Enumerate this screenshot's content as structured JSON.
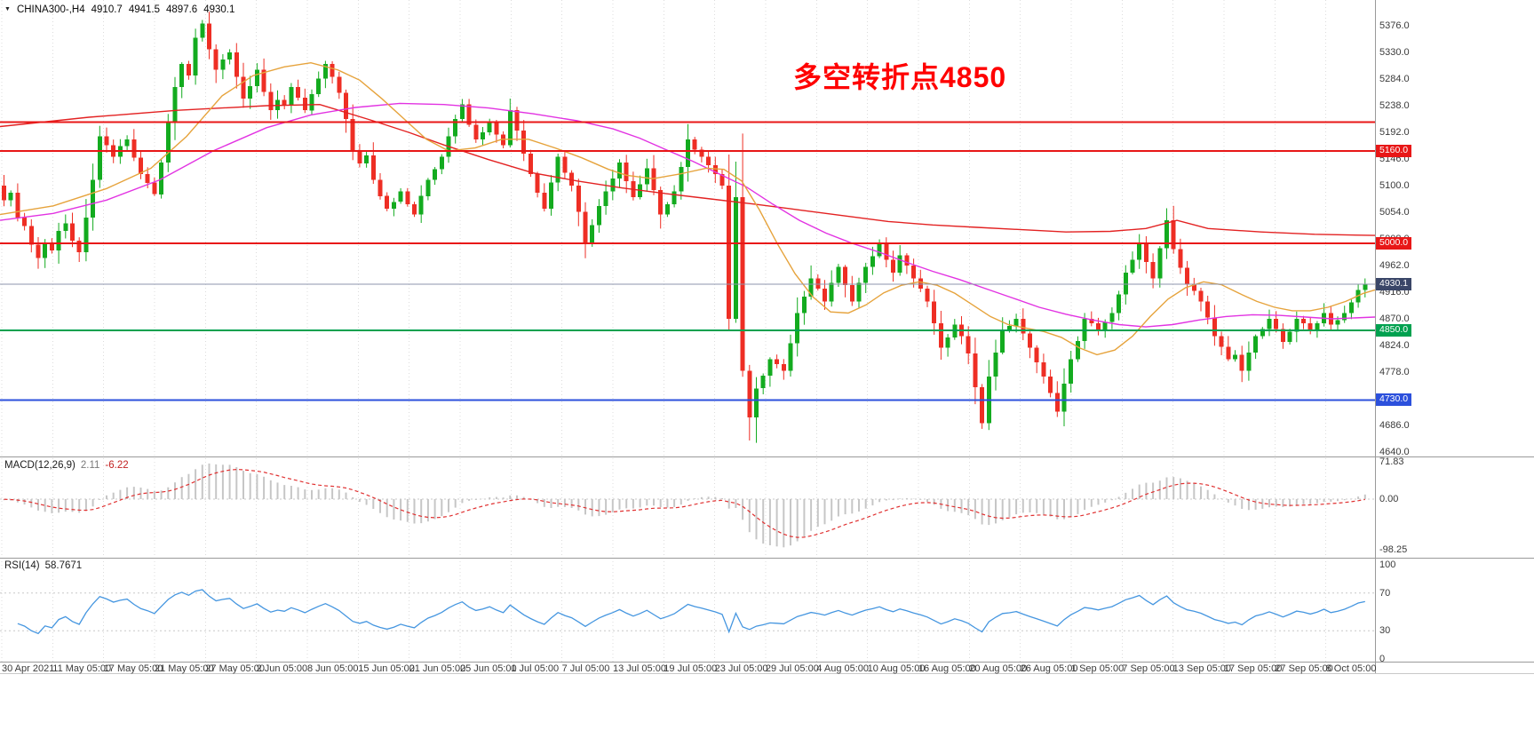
{
  "header": {
    "marker": "▼",
    "symbol": "CHINA300-,H4",
    "open": "4910.7",
    "high": "4941.5",
    "low": "4897.6",
    "close": "4930.1"
  },
  "annotation": {
    "text": "多空转折点4850",
    "color": "#ff0000"
  },
  "macd_panel": {
    "label": "MACD(12,26,9)",
    "value_main": "2.11",
    "value_signal": "-6.22",
    "axis_labels": [
      "71.83",
      "0.00",
      "-98.25"
    ],
    "axis_values": [
      71.83,
      0,
      -98.25
    ]
  },
  "rsi_panel": {
    "label": "RSI(14)",
    "value": "58.7671",
    "axis_labels": [
      "100",
      "70",
      "30",
      "0"
    ],
    "axis_values": [
      100,
      70,
      30,
      0
    ],
    "levels": [
      70,
      30
    ]
  },
  "price_axis_ticks": [
    "5376.0",
    "5330.0",
    "5284.0",
    "5238.0",
    "5192.0",
    "5146.0",
    "5100.0",
    "5054.0",
    "5008.0",
    "4962.0",
    "4916.0",
    "4870.0",
    "4824.0",
    "4778.0",
    "4732.0",
    "4686.0",
    "4640.0"
  ],
  "time_axis_labels": [
    "30 Apr 2021",
    "11 May 05:00",
    "17 May 05:00",
    "21 May 05:00",
    "27 May 05:00",
    "2 Jun 05:00",
    "8 Jun 05:00",
    "15 Jun 05:00",
    "21 Jun 05:00",
    "25 Jun 05:00",
    "1 Jul 05:00",
    "7 Jul 05:00",
    "13 Jul 05:00",
    "19 Jul 05:00",
    "23 Jul 05:00",
    "29 Jul 05:00",
    "4 Aug 05:00",
    "10 Aug 05:00",
    "16 Aug 05:00",
    "20 Aug 05:00",
    "26 Aug 05:00",
    "1 Sep 05:00",
    "7 Sep 05:00",
    "13 Sep 05:00",
    "17 Sep 05:00",
    "27 Sep 05:00",
    "8 Oct 05:00"
  ],
  "colors": {
    "background": "#ffffff",
    "grid": "#dcdcdc",
    "separator": "#9a9a9a",
    "candle_up": "#13ab1f",
    "candle_down": "#ee2e24",
    "macd_histogram": "#c6c6c6",
    "macd_signal": "#e03131",
    "rsi_line": "#4596e0",
    "level_dotted": "#c8c8c8",
    "axis_text": "#3a3a3a"
  },
  "chart_data": {
    "type": "candlestick",
    "symbol": "CHINA300-",
    "timeframe": "H4",
    "ohlc_current": {
      "open": 4910.7,
      "high": 4941.5,
      "low": 4897.6,
      "close": 4930.1
    },
    "ylim": [
      4640,
      5376
    ],
    "y_tick_step": 46,
    "closes": [
      5100,
      5075,
      5088,
      5045,
      5030,
      4998,
      4975,
      5002,
      4988,
      5022,
      5035,
      5005,
      4985,
      5045,
      5110,
      5185,
      5170,
      5150,
      5168,
      5180,
      5148,
      5120,
      5105,
      5085,
      5140,
      5210,
      5270,
      5310,
      5290,
      5355,
      5380,
      5335,
      5300,
      5318,
      5330,
      5288,
      5250,
      5272,
      5300,
      5262,
      5230,
      5248,
      5238,
      5270,
      5252,
      5230,
      5258,
      5285,
      5310,
      5288,
      5260,
      5215,
      5160,
      5138,
      5152,
      5110,
      5082,
      5060,
      5072,
      5090,
      5068,
      5050,
      5082,
      5110,
      5128,
      5150,
      5185,
      5215,
      5240,
      5205,
      5180,
      5192,
      5210,
      5188,
      5170,
      5230,
      5195,
      5155,
      5120,
      5088,
      5060,
      5105,
      5150,
      5122,
      5100,
      5055,
      5000,
      5032,
      5065,
      5090,
      5112,
      5140,
      5108,
      5080,
      5102,
      5130,
      5092,
      5050,
      5068,
      5090,
      5132,
      5180,
      5162,
      5150,
      5135,
      5120,
      5100,
      4870,
      5080,
      4780,
      4700,
      4750,
      4772,
      4800,
      4792,
      4780,
      4828,
      4880,
      4908,
      4940,
      4922,
      4900,
      4932,
      4960,
      4928,
      4900,
      4932,
      4960,
      4978,
      5000,
      4972,
      4950,
      4980,
      4962,
      4940,
      4922,
      4900,
      4862,
      4820,
      4838,
      4860,
      4840,
      4810,
      4752,
      4690,
      4770,
      4812,
      4850,
      4858,
      4870,
      4845,
      4820,
      4795,
      4770,
      4742,
      4710,
      4758,
      4800,
      4832,
      4870,
      4862,
      4850,
      4865,
      4880,
      4912,
      4950,
      4972,
      5000,
      4968,
      4940,
      4992,
      5040,
      4990,
      4958,
      4930,
      4918,
      4900,
      4872,
      4840,
      4822,
      4800,
      4808,
      4780,
      4812,
      4840,
      4852,
      4870,
      4852,
      4830,
      4848,
      4870,
      4862,
      4850,
      4862,
      4880,
      4860,
      4868,
      4880,
      4898,
      4920,
      4930.1
    ],
    "wick_extremes": [
      {
        "i": 29,
        "high": 5386
      },
      {
        "i": 106,
        "low": 4850
      },
      {
        "i": 108,
        "low": 4770
      },
      {
        "i": 109,
        "low": 4660
      },
      {
        "i": 110,
        "low": 4656
      },
      {
        "i": 143,
        "low": 4680
      },
      {
        "i": 144,
        "low": 4678
      }
    ],
    "hlines": [
      {
        "price": 5210.0,
        "color": "#e81717",
        "width": 2,
        "label": null,
        "label_bg": null
      },
      {
        "price": 5160.0,
        "color": "#e81717",
        "width": 2,
        "label": "5160.0",
        "label_bg": "#e81717"
      },
      {
        "price": 5000.0,
        "color": "#e81717",
        "width": 2,
        "label": "5000.0",
        "label_bg": "#e81717"
      },
      {
        "price": 4850.0,
        "color": "#00a14f",
        "width": 2,
        "label": "4850.0",
        "label_bg": "#00a14f"
      },
      {
        "price": 4730.0,
        "color": "#2c50dc",
        "width": 2,
        "label": "4730.0",
        "label_bg": "#2c50dc"
      }
    ],
    "current_price": {
      "value": 4930.1,
      "label": "4930.1",
      "line_color": "#8d96ad",
      "label_bg": "#3a4668"
    },
    "ma_lines": [
      {
        "name": "slow-red",
        "color": "#e32222",
        "points": [
          [
            0,
            5202
          ],
          [
            100,
            5218
          ],
          [
            200,
            5230
          ],
          [
            300,
            5238
          ],
          [
            360,
            5240
          ],
          [
            420,
            5212
          ],
          [
            460,
            5192
          ],
          [
            500,
            5170
          ],
          [
            550,
            5145
          ],
          [
            600,
            5122
          ],
          [
            650,
            5108
          ],
          [
            700,
            5096
          ],
          [
            750,
            5086
          ],
          [
            800,
            5077
          ],
          [
            850,
            5068
          ],
          [
            900,
            5058
          ],
          [
            950,
            5048
          ],
          [
            1000,
            5038
          ],
          [
            1050,
            5032
          ],
          [
            1100,
            5028
          ],
          [
            1150,
            5024
          ],
          [
            1200,
            5020
          ],
          [
            1250,
            5021
          ],
          [
            1290,
            5026
          ],
          [
            1325,
            5040
          ],
          [
            1360,
            5026
          ],
          [
            1420,
            5020
          ],
          [
            1480,
            5016
          ],
          [
            1548,
            5014
          ]
        ]
      },
      {
        "name": "medium-magenta",
        "color": "#e233e2",
        "points": [
          [
            0,
            5040
          ],
          [
            60,
            5052
          ],
          [
            120,
            5075
          ],
          [
            180,
            5110
          ],
          [
            240,
            5160
          ],
          [
            300,
            5200
          ],
          [
            350,
            5222
          ],
          [
            400,
            5235
          ],
          [
            450,
            5242
          ],
          [
            500,
            5240
          ],
          [
            550,
            5234
          ],
          [
            600,
            5224
          ],
          [
            650,
            5212
          ],
          [
            690,
            5198
          ],
          [
            720,
            5182
          ],
          [
            750,
            5162
          ],
          [
            780,
            5142
          ],
          [
            810,
            5120
          ],
          [
            840,
            5098
          ],
          [
            870,
            5068
          ],
          [
            900,
            5040
          ],
          [
            930,
            5018
          ],
          [
            960,
            5000
          ],
          [
            990,
            4985
          ],
          [
            1020,
            4968
          ],
          [
            1050,
            4952
          ],
          [
            1080,
            4938
          ],
          [
            1110,
            4922
          ],
          [
            1140,
            4906
          ],
          [
            1170,
            4890
          ],
          [
            1200,
            4878
          ],
          [
            1230,
            4868
          ],
          [
            1260,
            4860
          ],
          [
            1290,
            4856
          ],
          [
            1320,
            4860
          ],
          [
            1350,
            4868
          ],
          [
            1380,
            4874
          ],
          [
            1410,
            4877
          ],
          [
            1440,
            4876
          ],
          [
            1470,
            4873
          ],
          [
            1500,
            4870
          ],
          [
            1548,
            4873
          ]
        ]
      },
      {
        "name": "fast-orange",
        "color": "#e6a33c",
        "points": [
          [
            0,
            5050
          ],
          [
            60,
            5065
          ],
          [
            120,
            5095
          ],
          [
            170,
            5130
          ],
          [
            210,
            5185
          ],
          [
            250,
            5255
          ],
          [
            285,
            5290
          ],
          [
            320,
            5305
          ],
          [
            350,
            5312
          ],
          [
            380,
            5300
          ],
          [
            405,
            5282
          ],
          [
            430,
            5250
          ],
          [
            455,
            5215
          ],
          [
            480,
            5180
          ],
          [
            505,
            5160
          ],
          [
            535,
            5165
          ],
          [
            565,
            5180
          ],
          [
            595,
            5180
          ],
          [
            625,
            5165
          ],
          [
            655,
            5148
          ],
          [
            685,
            5128
          ],
          [
            705,
            5118
          ],
          [
            735,
            5112
          ],
          [
            765,
            5120
          ],
          [
            795,
            5130
          ],
          [
            815,
            5128
          ],
          [
            835,
            5108
          ],
          [
            855,
            5058
          ],
          [
            875,
            5000
          ],
          [
            895,
            4948
          ],
          [
            915,
            4908
          ],
          [
            935,
            4882
          ],
          [
            955,
            4880
          ],
          [
            975,
            4894
          ],
          [
            995,
            4915
          ],
          [
            1015,
            4928
          ],
          [
            1035,
            4934
          ],
          [
            1055,
            4928
          ],
          [
            1075,
            4914
          ],
          [
            1095,
            4894
          ],
          [
            1115,
            4874
          ],
          [
            1135,
            4860
          ],
          [
            1155,
            4854
          ],
          [
            1175,
            4848
          ],
          [
            1195,
            4838
          ],
          [
            1215,
            4820
          ],
          [
            1235,
            4808
          ],
          [
            1255,
            4816
          ],
          [
            1275,
            4840
          ],
          [
            1295,
            4874
          ],
          [
            1315,
            4904
          ],
          [
            1335,
            4924
          ],
          [
            1355,
            4934
          ],
          [
            1375,
            4929
          ],
          [
            1395,
            4914
          ],
          [
            1415,
            4900
          ],
          [
            1435,
            4890
          ],
          [
            1455,
            4884
          ],
          [
            1475,
            4884
          ],
          [
            1495,
            4890
          ],
          [
            1515,
            4900
          ],
          [
            1535,
            4914
          ],
          [
            1548,
            4920
          ]
        ]
      }
    ],
    "macd": {
      "params": [
        12,
        26,
        9
      ],
      "main": 2.11,
      "signal": -6.22,
      "axis": [
        71.83,
        0,
        -98.25
      ]
    },
    "rsi": {
      "period": 14,
      "value": 58.7671,
      "levels": [
        70,
        30
      ],
      "axis": [
        100,
        70,
        30,
        0
      ]
    }
  }
}
